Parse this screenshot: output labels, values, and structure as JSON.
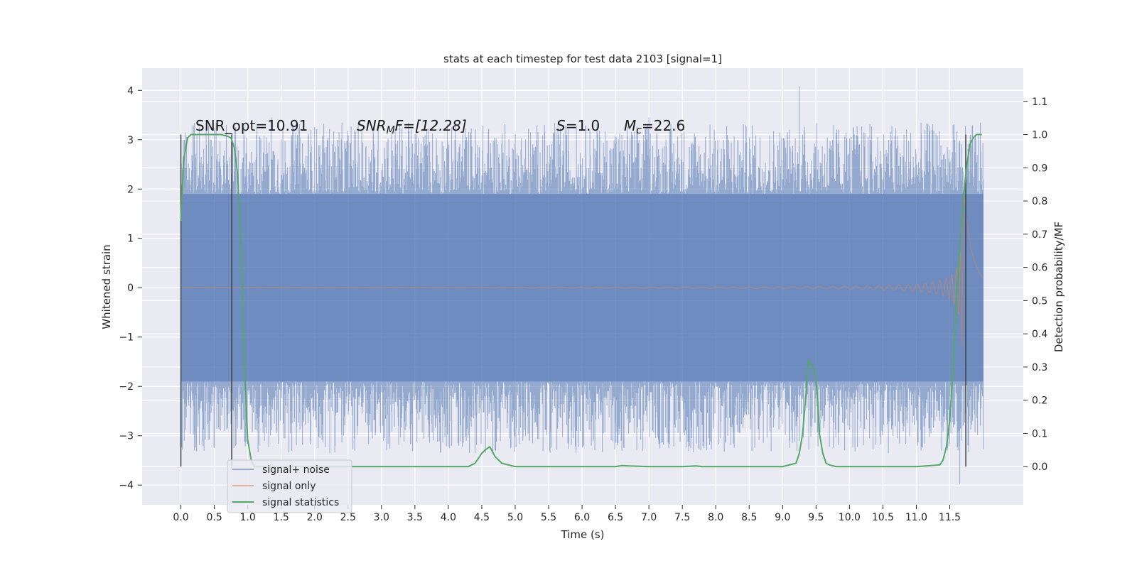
{
  "chart_data": {
    "type": "line",
    "title": "stats at each timestep for test data 2103 [signal=1]",
    "xlabel": "Time (s)",
    "ylabel": "Whitened strain",
    "y2label": "Detection probability/MF",
    "xlim": [
      -0.58,
      12.6
    ],
    "ylim": [
      -4.4,
      4.45
    ],
    "y2lim": [
      -0.115,
      1.2
    ],
    "x_ticks": [
      "0.0",
      "0.5",
      "1.0",
      "1.5",
      "2.0",
      "2.5",
      "3.0",
      "3.5",
      "4.0",
      "4.5",
      "5.0",
      "5.5",
      "6.0",
      "6.5",
      "7.0",
      "7.5",
      "8.0",
      "8.5",
      "9.0",
      "9.5",
      "10.0",
      "10.5",
      "11.0",
      "11.5"
    ],
    "y_ticks": [
      "4",
      "3",
      "2",
      "1",
      "0",
      "−1",
      "−2",
      "−3",
      "−4"
    ],
    "y2_ticks": [
      "1.1",
      "1.0",
      "0.9",
      "0.8",
      "0.7",
      "0.6",
      "0.5",
      "0.4",
      "0.3",
      "0.2",
      "0.1",
      "0.0"
    ],
    "grid": true,
    "legend_position": "lower-left",
    "legend": [
      "signal+ noise",
      "signal only",
      "signal statistics"
    ],
    "annotations": {
      "snr_opt": "SNR_opt=10.91",
      "snr_mf_main": "SNR",
      "snr_mf_sub": "M",
      "snr_mf_rest": "F=[12.28]",
      "s_main": "S",
      "s_rest": "=1.0",
      "mc_main": "M",
      "mc_sub": "c",
      "mc_rest": "=22.6"
    },
    "vertical_lines": [
      0.0,
      0.76,
      11.74
    ],
    "series": [
      {
        "name": "signal+ noise",
        "color": "#4c72b0",
        "x_range": [
          0.0,
          12.0
        ],
        "band_y": [
          -1.9,
          1.9
        ],
        "peak_y": [
          -3.97,
          4.08
        ]
      },
      {
        "name": "signal only",
        "color": "#dd8452",
        "x_range": [
          0.0,
          12.0
        ],
        "peak_y": [
          -1.7,
          1.9
        ]
      },
      {
        "name": "signal statistics",
        "color": "#55a868",
        "axis": "right",
        "x": [
          0.0,
          0.04,
          0.1,
          0.15,
          0.2,
          0.3,
          0.4,
          0.5,
          0.6,
          0.7,
          0.75,
          0.8,
          0.85,
          0.9,
          0.95,
          1.0,
          1.05,
          1.1,
          1.2,
          1.5,
          2.0,
          3.0,
          4.0,
          4.3,
          4.4,
          4.5,
          4.55,
          4.62,
          4.7,
          4.8,
          4.9,
          5.0,
          5.5,
          6.0,
          6.5,
          6.6,
          6.7,
          7.0,
          7.5,
          7.7,
          7.8,
          8.0,
          9.0,
          9.2,
          9.25,
          9.3,
          9.35,
          9.38,
          9.42,
          9.48,
          9.52,
          9.55,
          9.6,
          9.65,
          9.7,
          9.8,
          10.0,
          11.0,
          11.35,
          11.4,
          11.45,
          11.5,
          11.55,
          11.6,
          11.65,
          11.7,
          11.75,
          11.8,
          11.85,
          11.9,
          11.98
        ],
        "y": [
          0.74,
          0.92,
          0.99,
          1.0,
          1.0,
          1.0,
          1.0,
          1.0,
          1.0,
          0.995,
          0.99,
          0.96,
          0.88,
          0.65,
          0.3,
          0.08,
          0.02,
          0.0,
          0.0,
          0.0,
          0.0,
          0.0,
          0.0,
          0.0,
          0.01,
          0.04,
          0.05,
          0.06,
          0.03,
          0.01,
          0.005,
          0.0,
          0.0,
          0.0,
          0.0,
          0.003,
          0.002,
          0.0,
          0.0,
          0.002,
          0.0,
          0.0,
          0.0,
          0.01,
          0.04,
          0.1,
          0.22,
          0.32,
          0.31,
          0.29,
          0.22,
          0.1,
          0.04,
          0.01,
          0.005,
          0.0,
          0.0,
          0.0,
          0.005,
          0.02,
          0.06,
          0.14,
          0.3,
          0.5,
          0.65,
          0.8,
          0.9,
          0.97,
          0.99,
          1.0,
          1.0
        ]
      }
    ]
  }
}
